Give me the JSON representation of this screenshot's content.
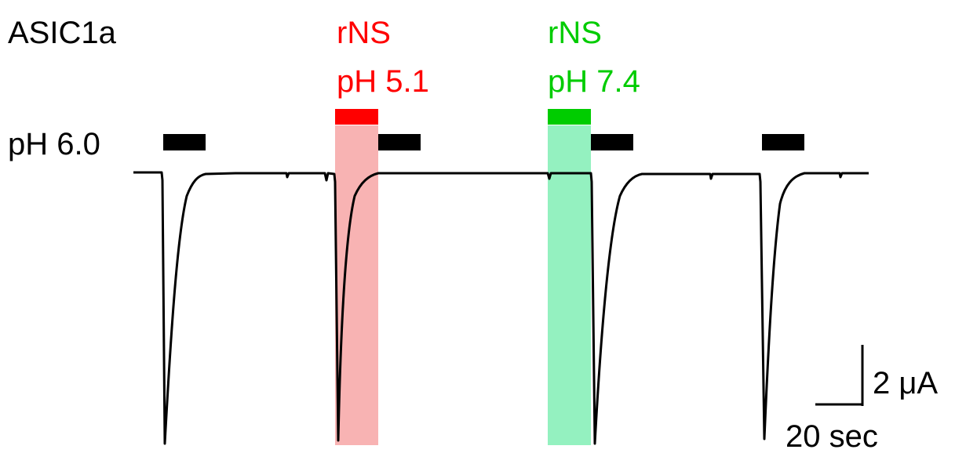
{
  "figure": {
    "channel_label": "ASIC1a",
    "condition_label": "pH 6.0",
    "rns_acid": {
      "line1": "rNS",
      "line2": "pH 5.1",
      "color": "#ff0000",
      "shade_color": "#f48a8a"
    },
    "rns_neutral": {
      "line1": "rNS",
      "line2": "pH 7.4",
      "color": "#00cc00",
      "shade_color": "#3ce68c"
    },
    "trace_color": "#000000",
    "scale_bar": {
      "vertical_label": "2 μA",
      "horizontal_label": "20 sec"
    }
  }
}
